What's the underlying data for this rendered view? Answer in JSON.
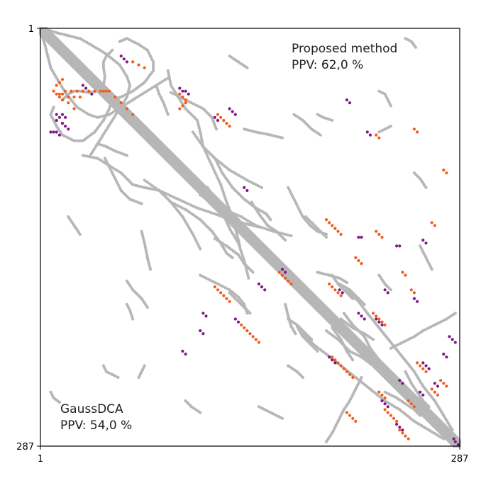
{
  "chart_data": {
    "type": "scatter",
    "subtype": "contact-map",
    "title": "",
    "xlabel": "",
    "ylabel": "",
    "xlim": [
      1,
      287
    ],
    "ylim": [
      1,
      287
    ],
    "y_axis_inverted": true,
    "tick_labels": {
      "x_start": "1",
      "x_end": "287",
      "y_start": "1",
      "y_end": "287"
    },
    "grid": false,
    "annotations": {
      "upper": {
        "method": "Proposed method",
        "ppv": "PPV: 62,0 %"
      },
      "lower": {
        "method": "GaussDCA",
        "ppv": "PPV: 54,0 %"
      }
    },
    "colors": {
      "native_contact": "#b7b7b7",
      "true_positive": "#f25c19",
      "false_positive": "#7d1a86",
      "diagonal": "#b7b7b7"
    },
    "diagonal_band": {
      "from": 1,
      "to": 287,
      "half_width": 4
    },
    "native_contact_segments": [
      [
        [
          1,
          2
        ],
        [
          2,
          6
        ],
        [
          4,
          12
        ],
        [
          6,
          20
        ],
        [
          8,
          28
        ],
        [
          12,
          35
        ],
        [
          18,
          45
        ],
        [
          26,
          55
        ],
        [
          34,
          60
        ],
        [
          40,
          62
        ],
        [
          48,
          60
        ],
        [
          56,
          55
        ],
        [
          64,
          50
        ],
        [
          72,
          45
        ],
        [
          80,
          40
        ],
        [
          88,
          35
        ]
      ],
      [
        [
          16,
          50
        ],
        [
          20,
          46
        ],
        [
          24,
          44
        ],
        [
          28,
          44
        ],
        [
          34,
          45
        ],
        [
          40,
          44
        ],
        [
          46,
          44
        ],
        [
          50,
          48
        ],
        [
          48,
          56
        ],
        [
          44,
          64
        ],
        [
          38,
          72
        ],
        [
          30,
          78
        ],
        [
          24,
          78
        ],
        [
          16,
          74
        ],
        [
          12,
          68
        ],
        [
          8,
          60
        ],
        [
          10,
          55
        ]
      ],
      [
        [
          30,
          88
        ],
        [
          40,
          90
        ],
        [
          48,
          95
        ],
        [
          56,
          100
        ],
        [
          64,
          108
        ],
        [
          72,
          110
        ],
        [
          82,
          112
        ],
        [
          90,
          120
        ],
        [
          98,
          130
        ],
        [
          105,
          142
        ],
        [
          110,
          152
        ]
      ],
      [
        [
          45,
          90
        ],
        [
          50,
          100
        ],
        [
          56,
          112
        ],
        [
          62,
          118
        ],
        [
          70,
          121
        ]
      ],
      [
        [
          90,
          120
        ],
        [
          100,
          125
        ],
        [
          110,
          132
        ],
        [
          118,
          140
        ],
        [
          124,
          148
        ],
        [
          128,
          155
        ],
        [
          132,
          158
        ]
      ],
      [
        [
          105,
          72
        ],
        [
          112,
          82
        ],
        [
          118,
          95
        ],
        [
          124,
          108
        ],
        [
          128,
          120
        ],
        [
          132,
          130
        ],
        [
          135,
          142
        ],
        [
          137,
          150
        ]
      ],
      [
        [
          115,
          110
        ],
        [
          123,
          122
        ],
        [
          130,
          138
        ],
        [
          136,
          148
        ],
        [
          140,
          160
        ],
        [
          143,
          172
        ]
      ],
      [
        [
          145,
          120
        ],
        [
          150,
          128
        ],
        [
          156,
          136
        ],
        [
          162,
          140
        ],
        [
          168,
          146
        ]
      ],
      [
        [
          170,
          110
        ],
        [
          175,
          120
        ],
        [
          180,
          130
        ],
        [
          185,
          136
        ],
        [
          190,
          140
        ],
        [
          196,
          142
        ]
      ],
      [
        [
          168,
          190
        ],
        [
          170,
          198
        ],
        [
          172,
          205
        ],
        [
          175,
          210
        ]
      ],
      [
        [
          176,
          205
        ],
        [
          180,
          212
        ],
        [
          186,
          218
        ],
        [
          190,
          222
        ]
      ],
      [
        [
          180,
          210
        ],
        [
          188,
          218
        ],
        [
          196,
          224
        ],
        [
          206,
          232
        ],
        [
          216,
          240
        ],
        [
          226,
          248
        ],
        [
          236,
          256
        ],
        [
          246,
          262
        ],
        [
          256,
          270
        ],
        [
          266,
          276
        ],
        [
          276,
          282
        ]
      ],
      [
        [
          196,
          208
        ],
        [
          204,
          214
        ],
        [
          212,
          222
        ],
        [
          220,
          226
        ],
        [
          228,
          232
        ],
        [
          236,
          234
        ]
      ],
      [
        [
          206,
          200
        ],
        [
          214,
          206
        ],
        [
          222,
          210
        ],
        [
          228,
          214
        ]
      ],
      [
        [
          240,
          220
        ],
        [
          248,
          216
        ],
        [
          256,
          212
        ],
        [
          262,
          208
        ],
        [
          270,
          204
        ],
        [
          278,
          200
        ],
        [
          284,
          196
        ]
      ],
      [
        [
          250,
          236
        ],
        [
          254,
          244
        ],
        [
          258,
          250
        ],
        [
          262,
          256
        ],
        [
          266,
          260
        ]
      ],
      [
        [
          70,
          140
        ],
        [
          72,
          148
        ],
        [
          74,
          158
        ],
        [
          76,
          166
        ]
      ],
      [
        [
          60,
          174
        ],
        [
          64,
          180
        ],
        [
          70,
          186
        ],
        [
          74,
          192
        ]
      ],
      [
        [
          80,
          40
        ],
        [
          82,
          46
        ],
        [
          85,
          52
        ],
        [
          88,
          60
        ]
      ],
      [
        [
          8,
          250
        ],
        [
          10,
          254
        ],
        [
          14,
          257
        ]
      ],
      [
        [
          44,
          232
        ],
        [
          46,
          236
        ],
        [
          50,
          238
        ],
        [
          54,
          240
        ]
      ],
      [
        [
          190,
          60
        ],
        [
          194,
          62
        ],
        [
          200,
          64
        ]
      ],
      [
        [
          232,
          72
        ],
        [
          236,
          70
        ],
        [
          240,
          68
        ]
      ],
      [
        [
          130,
          20
        ],
        [
          136,
          24
        ],
        [
          142,
          28
        ]
      ],
      [
        [
          182,
          130
        ],
        [
          186,
          134
        ],
        [
          190,
          138
        ],
        [
          196,
          144
        ]
      ],
      [
        [
          150,
          260
        ],
        [
          158,
          264
        ],
        [
          166,
          268
        ]
      ],
      [
        [
          200,
          170
        ],
        [
          204,
          176
        ],
        [
          210,
          182
        ],
        [
          214,
          186
        ]
      ],
      [
        [
          232,
          170
        ],
        [
          236,
          176
        ],
        [
          240,
          180
        ]
      ],
      [
        [
          256,
          100
        ],
        [
          260,
          104
        ],
        [
          264,
          110
        ]
      ]
    ],
    "true_positive_points": [
      [
        14,
        46
      ],
      [
        16,
        46
      ],
      [
        18,
        44
      ],
      [
        22,
        44
      ],
      [
        26,
        44
      ],
      [
        30,
        44
      ],
      [
        34,
        44
      ],
      [
        38,
        44
      ],
      [
        42,
        44
      ],
      [
        44,
        44
      ],
      [
        46,
        44
      ],
      [
        20,
        48
      ],
      [
        24,
        48
      ],
      [
        28,
        48
      ],
      [
        12,
        40
      ],
      [
        14,
        38
      ],
      [
        16,
        36
      ],
      [
        10,
        44
      ],
      [
        12,
        46
      ],
      [
        14,
        48
      ],
      [
        16,
        50
      ],
      [
        20,
        52
      ],
      [
        24,
        56
      ],
      [
        48,
        44
      ],
      [
        52,
        48
      ],
      [
        56,
        52
      ],
      [
        60,
        56
      ],
      [
        64,
        60
      ],
      [
        96,
        46
      ],
      [
        98,
        48
      ],
      [
        100,
        50
      ],
      [
        100,
        52
      ],
      [
        98,
        54
      ],
      [
        96,
        56
      ],
      [
        122,
        60
      ],
      [
        124,
        62
      ],
      [
        126,
        64
      ],
      [
        128,
        66
      ],
      [
        130,
        68
      ],
      [
        120,
        178
      ],
      [
        122,
        180
      ],
      [
        124,
        182
      ],
      [
        126,
        184
      ],
      [
        128,
        186
      ],
      [
        130,
        188
      ],
      [
        138,
        204
      ],
      [
        140,
        206
      ],
      [
        142,
        208
      ],
      [
        144,
        210
      ],
      [
        146,
        212
      ],
      [
        148,
        214
      ],
      [
        150,
        216
      ],
      [
        164,
        168
      ],
      [
        166,
        170
      ],
      [
        168,
        172
      ],
      [
        170,
        174
      ],
      [
        172,
        176
      ],
      [
        196,
        132
      ],
      [
        198,
        134
      ],
      [
        200,
        136
      ],
      [
        202,
        138
      ],
      [
        204,
        140
      ],
      [
        206,
        142
      ],
      [
        200,
        226
      ],
      [
        202,
        228
      ],
      [
        204,
        230
      ],
      [
        206,
        232
      ],
      [
        208,
        234
      ],
      [
        210,
        236
      ],
      [
        212,
        238
      ],
      [
        214,
        240
      ],
      [
        228,
        196
      ],
      [
        230,
        198
      ],
      [
        232,
        200
      ],
      [
        234,
        202
      ],
      [
        236,
        204
      ],
      [
        236,
        262
      ],
      [
        238,
        264
      ],
      [
        240,
        266
      ],
      [
        242,
        268
      ],
      [
        244,
        270
      ],
      [
        246,
        276
      ],
      [
        248,
        278
      ],
      [
        250,
        280
      ],
      [
        252,
        282
      ],
      [
        258,
        230
      ],
      [
        260,
        232
      ],
      [
        262,
        234
      ],
      [
        264,
        236
      ],
      [
        210,
        264
      ],
      [
        212,
        266
      ],
      [
        214,
        268
      ],
      [
        216,
        270
      ],
      [
        232,
        250
      ],
      [
        234,
        252
      ],
      [
        236,
        254
      ],
      [
        252,
        256
      ],
      [
        254,
        258
      ],
      [
        256,
        260
      ],
      [
        268,
        248
      ],
      [
        270,
        250
      ],
      [
        272,
        252
      ],
      [
        274,
        242
      ],
      [
        276,
        244
      ],
      [
        278,
        246
      ],
      [
        198,
        176
      ],
      [
        200,
        178
      ],
      [
        202,
        180
      ],
      [
        204,
        182
      ],
      [
        206,
        184
      ],
      [
        216,
        158
      ],
      [
        218,
        160
      ],
      [
        220,
        162
      ],
      [
        230,
        140
      ],
      [
        232,
        142
      ],
      [
        234,
        144
      ],
      [
        230,
        74
      ],
      [
        232,
        76
      ],
      [
        256,
        70
      ],
      [
        258,
        72
      ],
      [
        276,
        98
      ],
      [
        278,
        100
      ],
      [
        268,
        134
      ],
      [
        270,
        136
      ],
      [
        64,
        24
      ],
      [
        68,
        26
      ],
      [
        72,
        28
      ],
      [
        248,
        168
      ],
      [
        250,
        170
      ],
      [
        254,
        180
      ],
      [
        256,
        182
      ]
    ],
    "false_positive_points": [
      [
        12,
        60
      ],
      [
        14,
        62
      ],
      [
        12,
        64
      ],
      [
        16,
        60
      ],
      [
        18,
        62
      ],
      [
        30,
        40
      ],
      [
        32,
        42
      ],
      [
        34,
        44
      ],
      [
        36,
        46
      ],
      [
        56,
        20
      ],
      [
        58,
        22
      ],
      [
        60,
        24
      ],
      [
        8,
        72
      ],
      [
        10,
        72
      ],
      [
        12,
        72
      ],
      [
        14,
        74
      ],
      [
        16,
        66
      ],
      [
        18,
        68
      ],
      [
        20,
        70
      ],
      [
        96,
        42
      ],
      [
        98,
        44
      ],
      [
        100,
        44
      ],
      [
        102,
        46
      ],
      [
        130,
        56
      ],
      [
        132,
        58
      ],
      [
        134,
        60
      ],
      [
        120,
        62
      ],
      [
        122,
        64
      ],
      [
        150,
        176
      ],
      [
        152,
        178
      ],
      [
        154,
        180
      ],
      [
        198,
        226
      ],
      [
        200,
        228
      ],
      [
        202,
        230
      ],
      [
        218,
        196
      ],
      [
        220,
        198
      ],
      [
        222,
        200
      ],
      [
        230,
        200
      ],
      [
        232,
        202
      ],
      [
        234,
        204
      ],
      [
        234,
        256
      ],
      [
        236,
        258
      ],
      [
        238,
        260
      ],
      [
        244,
        272
      ],
      [
        246,
        274
      ],
      [
        248,
        276
      ],
      [
        262,
        230
      ],
      [
        264,
        232
      ],
      [
        266,
        234
      ],
      [
        280,
        212
      ],
      [
        282,
        214
      ],
      [
        284,
        216
      ],
      [
        283,
        282
      ],
      [
        284,
        284
      ],
      [
        286,
        286
      ],
      [
        244,
        150
      ],
      [
        246,
        150
      ],
      [
        218,
        144
      ],
      [
        220,
        144
      ],
      [
        205,
        180
      ],
      [
        207,
        182
      ],
      [
        260,
        250
      ],
      [
        262,
        252
      ],
      [
        270,
        244
      ],
      [
        272,
        246
      ],
      [
        140,
        110
      ],
      [
        142,
        112
      ],
      [
        210,
        50
      ],
      [
        212,
        52
      ],
      [
        224,
        72
      ],
      [
        226,
        74
      ],
      [
        236,
        180
      ],
      [
        238,
        182
      ],
      [
        256,
        186
      ],
      [
        258,
        188
      ],
      [
        98,
        222
      ],
      [
        100,
        224
      ],
      [
        134,
        200
      ],
      [
        136,
        202
      ],
      [
        112,
        196
      ],
      [
        114,
        198
      ],
      [
        110,
        208
      ],
      [
        112,
        210
      ],
      [
        166,
        166
      ],
      [
        168,
        168
      ],
      [
        262,
        146
      ],
      [
        264,
        148
      ],
      [
        276,
        224
      ],
      [
        278,
        226
      ],
      [
        246,
        242
      ],
      [
        248,
        244
      ]
    ]
  }
}
